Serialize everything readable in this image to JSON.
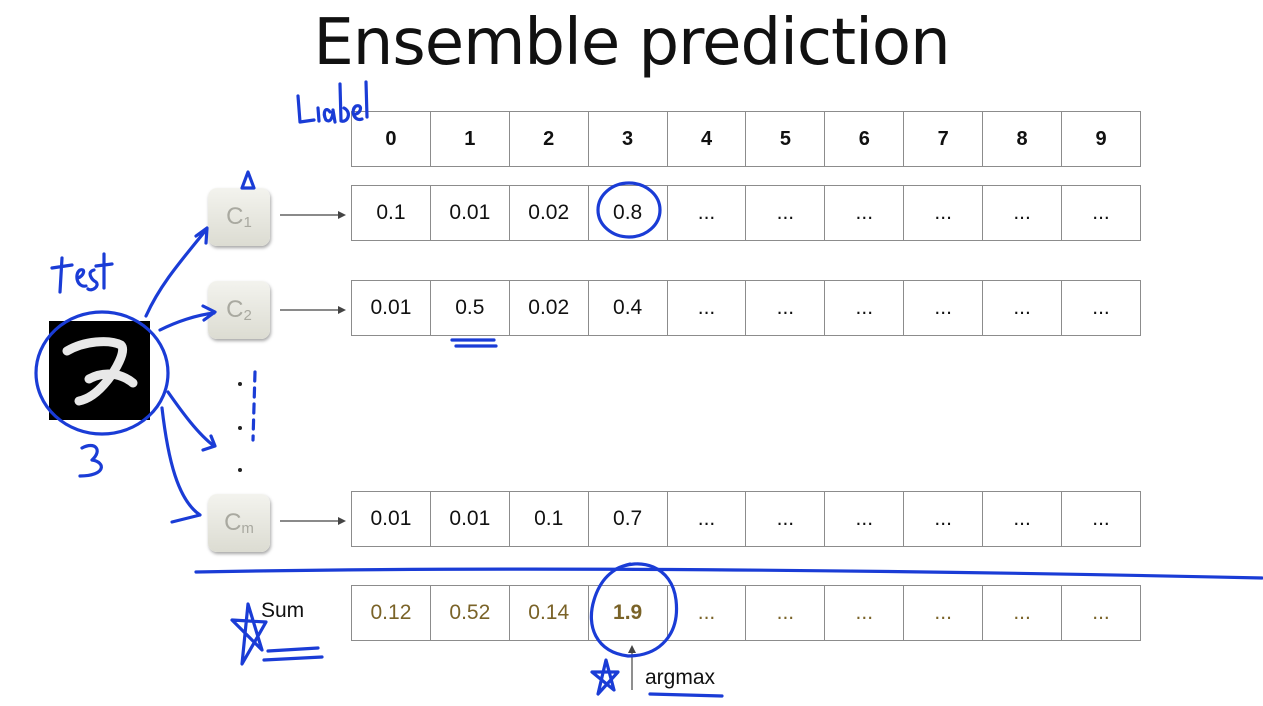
{
  "title": "Ensemble prediction",
  "header": [
    "0",
    "1",
    "2",
    "3",
    "4",
    "5",
    "6",
    "7",
    "8",
    "9"
  ],
  "classifiers": [
    {
      "base": "C",
      "sub": "1"
    },
    {
      "base": "C",
      "sub": "2"
    },
    {
      "base": "C",
      "sub": "m"
    }
  ],
  "rows": [
    [
      "0.1",
      "0.01",
      "0.02",
      "0.8",
      "...",
      "...",
      "...",
      "...",
      "...",
      "..."
    ],
    [
      "0.01",
      "0.5",
      "0.02",
      "0.4",
      "...",
      "...",
      "...",
      "...",
      "...",
      "..."
    ],
    [
      "0.01",
      "0.01",
      "0.1",
      "0.7",
      "...",
      "...",
      "...",
      "...",
      "...",
      "..."
    ]
  ],
  "sum": {
    "label": "Sum",
    "values": [
      "0.12",
      "0.52",
      "0.14",
      "1.9",
      "...",
      "...",
      "...",
      "...",
      "...",
      "..."
    ]
  },
  "argmax_label": "argmax",
  "annotations": {
    "label_word": "Label",
    "test_word": "test",
    "digit_written": "3",
    "ink_color": "#1a3cd6"
  }
}
